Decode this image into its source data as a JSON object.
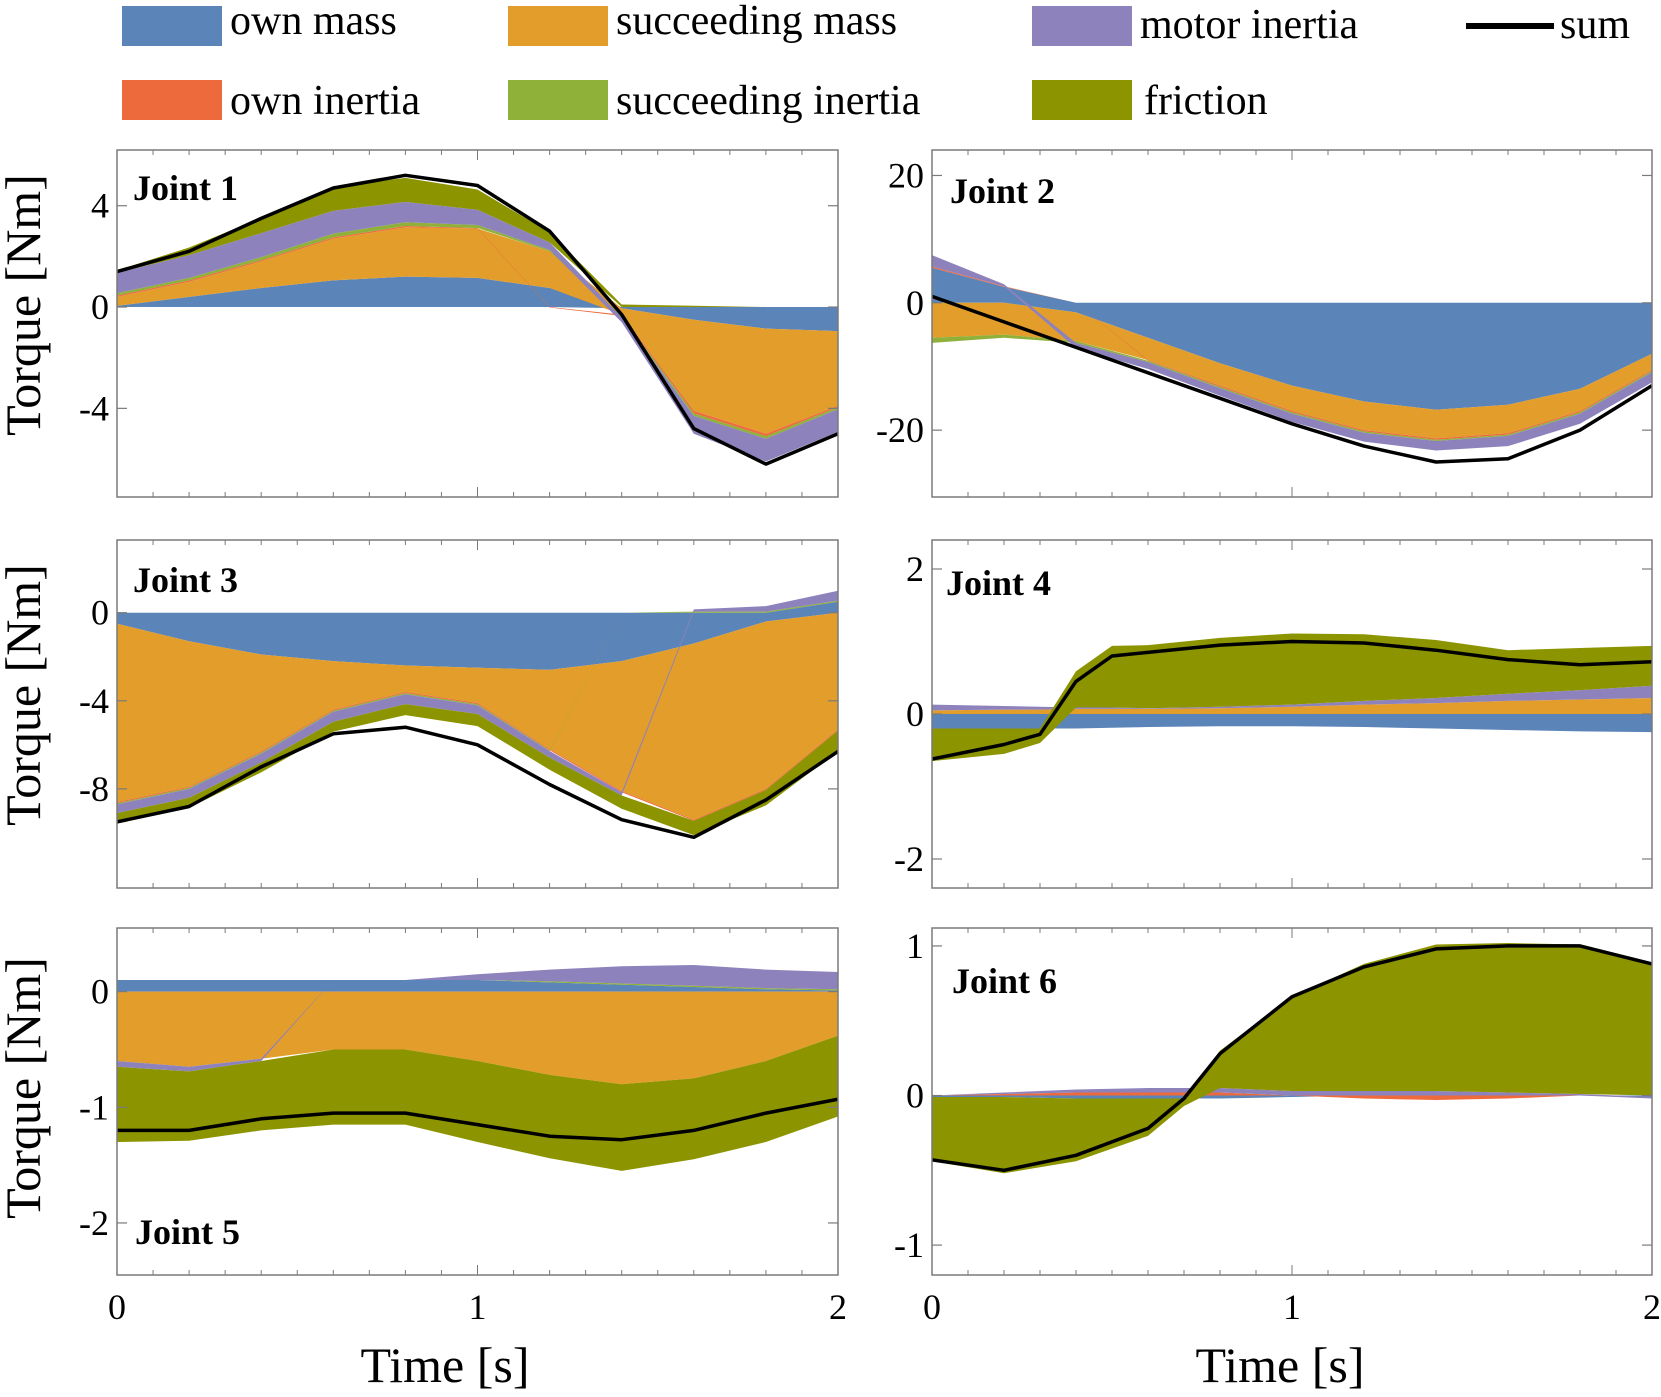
{
  "legend": {
    "entries": [
      {
        "key": "own_mass",
        "label": "own mass",
        "color": "#5b84b8"
      },
      {
        "key": "succ_mass",
        "label": "succeeding mass",
        "color": "#e39d2b"
      },
      {
        "key": "motor_inertia",
        "label": "motor inertia",
        "color": "#8e82bd"
      },
      {
        "key": "sum",
        "label": "sum",
        "color": "#000000"
      },
      {
        "key": "own_inertia",
        "label": "own inertia",
        "color": "#ed6a3d"
      },
      {
        "key": "succ_inertia",
        "label": "succeeding inertia",
        "color": "#8fb13a"
      },
      {
        "key": "friction",
        "label": "friction",
        "color": "#8c9400"
      }
    ]
  },
  "axes": {
    "ylabel": "Torque [Nm]",
    "xlabel": "Time [s]"
  },
  "chart_data": [
    {
      "type": "area",
      "title": "Joint 1",
      "xlabel": "Time [s]",
      "ylabel": "Torque [Nm]",
      "xlim": [
        0,
        2
      ],
      "ylim": [
        -7.5,
        6.2
      ],
      "xticks": [
        0,
        1,
        2
      ],
      "yticks": [
        -4,
        0,
        4
      ],
      "ytick_labels": [
        "-4",
        "0",
        "4"
      ],
      "x": [
        0,
        0.2,
        0.4,
        0.6,
        0.8,
        1.0,
        1.2,
        1.4,
        1.6,
        1.8,
        2.0
      ],
      "series": [
        {
          "key": "own_mass",
          "name": "own mass",
          "values": [
            0.05,
            0.4,
            0.75,
            1.05,
            1.2,
            1.15,
            0.75,
            -0.05,
            -0.5,
            -0.85,
            -0.95
          ]
        },
        {
          "key": "succ_mass",
          "name": "succeeding mass",
          "values": [
            0.35,
            0.6,
            1.05,
            1.65,
            1.95,
            1.95,
            1.45,
            -0.25,
            -3.6,
            -4.15,
            -2.95
          ]
        },
        {
          "key": "own_inertia",
          "name": "own inertia",
          "values": [
            0.05,
            0.05,
            0.05,
            0.05,
            0.05,
            0.02,
            -0.02,
            -0.05,
            -0.1,
            -0.1,
            -0.05
          ]
        },
        {
          "key": "succ_inertia",
          "name": "succeeding inertia",
          "values": [
            0.1,
            0.1,
            0.12,
            0.15,
            0.15,
            0.12,
            0.05,
            -0.05,
            -0.1,
            -0.1,
            -0.08
          ]
        },
        {
          "key": "motor_inertia",
          "name": "motor inertia",
          "values": [
            0.8,
            0.9,
            0.95,
            0.9,
            0.8,
            0.6,
            0.3,
            -0.2,
            -0.7,
            -0.9,
            -0.9
          ]
        },
        {
          "key": "friction",
          "name": "friction",
          "values": [
            0.1,
            0.3,
            0.6,
            0.95,
            0.95,
            0.8,
            0.4,
            0.1,
            0.05,
            0.0,
            0.0
          ]
        }
      ],
      "sum": [
        1.4,
        2.2,
        3.5,
        4.7,
        5.2,
        4.8,
        3.0,
        -0.3,
        -4.8,
        -6.2,
        -5.0
      ]
    },
    {
      "type": "area",
      "title": "Joint 2",
      "xlabel": "Time [s]",
      "ylabel": "Torque [Nm]",
      "xlim": [
        0,
        2
      ],
      "ylim": [
        -30.5,
        24
      ],
      "xticks": [
        0,
        1,
        2
      ],
      "yticks": [
        -20,
        0,
        20
      ],
      "ytick_labels": [
        "-20",
        "0",
        "20"
      ],
      "x": [
        0,
        0.2,
        0.4,
        0.6,
        0.8,
        1.0,
        1.2,
        1.4,
        1.6,
        1.8,
        2.0
      ],
      "series": [
        {
          "key": "own_mass",
          "name": "own mass",
          "values": [
            5.5,
            2.5,
            -1.5,
            -5.5,
            -9.5,
            -13.0,
            -15.5,
            -16.8,
            -16.0,
            -13.5,
            -8.0
          ]
        },
        {
          "key": "succ_mass",
          "name": "succeeding mass",
          "values": [
            -5.5,
            -5.0,
            -4.5,
            -3.5,
            -3.5,
            -4.0,
            -4.5,
            -4.5,
            -4.5,
            -3.5,
            -2.5
          ]
        },
        {
          "key": "own_inertia",
          "name": "own inertia",
          "values": [
            0.2,
            0.1,
            0.0,
            -0.1,
            -0.2,
            -0.2,
            -0.2,
            -0.2,
            -0.2,
            -0.2,
            -0.2
          ]
        },
        {
          "key": "succ_inertia",
          "name": "succeeding inertia",
          "values": [
            -0.8,
            -0.5,
            -0.3,
            -0.2,
            -0.2,
            -0.2,
            -0.2,
            -0.2,
            -0.2,
            -0.2,
            -0.2
          ]
        },
        {
          "key": "motor_inertia",
          "name": "motor inertia",
          "values": [
            1.8,
            0.3,
            -0.8,
            -1.1,
            -1.2,
            -1.3,
            -1.4,
            -1.5,
            -1.6,
            -1.6,
            -1.6
          ]
        },
        {
          "key": "friction",
          "name": "friction",
          "values": [
            0.0,
            0.0,
            0.0,
            0.0,
            0.0,
            0.0,
            0.0,
            0.0,
            0.0,
            0.0,
            0.0
          ]
        }
      ],
      "sum": [
        1.0,
        -3.0,
        -7.0,
        -11.0,
        -15.0,
        -19.0,
        -22.5,
        -25.0,
        -24.5,
        -20.0,
        -13.0
      ]
    },
    {
      "type": "area",
      "title": "Joint 3",
      "xlabel": "Time [s]",
      "ylabel": "Torque [Nm]",
      "xlim": [
        0,
        2
      ],
      "ylim": [
        -12.5,
        3.3
      ],
      "xticks": [
        0,
        1,
        2
      ],
      "yticks": [
        -8,
        -4,
        0
      ],
      "ytick_labels": [
        "-8",
        "-4",
        "0"
      ],
      "x": [
        0,
        0.2,
        0.4,
        0.6,
        0.8,
        1.0,
        1.2,
        1.4,
        1.6,
        1.8,
        2.0
      ],
      "series": [
        {
          "key": "own_mass",
          "name": "own mass",
          "values": [
            -0.5,
            -1.3,
            -1.9,
            -2.2,
            -2.4,
            -2.5,
            -2.6,
            -2.2,
            -1.4,
            -0.4,
            0.5
          ]
        },
        {
          "key": "succ_mass",
          "name": "succeeding mass",
          "values": [
            -8.1,
            -6.6,
            -4.4,
            -2.2,
            -1.2,
            -1.6,
            -3.6,
            -5.9,
            -8.0,
            -7.6,
            -5.3
          ]
        },
        {
          "key": "own_inertia",
          "name": "own inertia",
          "values": [
            -0.05,
            -0.05,
            -0.05,
            -0.05,
            -0.05,
            -0.05,
            -0.05,
            -0.05,
            -0.05,
            -0.05,
            -0.05
          ]
        },
        {
          "key": "succ_inertia",
          "name": "succeeding inertia",
          "values": [
            -0.05,
            -0.05,
            -0.05,
            -0.05,
            -0.05,
            -0.05,
            -0.03,
            0.0,
            0.05,
            0.05,
            0.05
          ]
        },
        {
          "key": "motor_inertia",
          "name": "motor inertia",
          "values": [
            -0.4,
            -0.4,
            -0.4,
            -0.45,
            -0.45,
            -0.4,
            -0.3,
            -0.15,
            0.1,
            0.25,
            0.45
          ]
        },
        {
          "key": "friction",
          "name": "friction",
          "values": [
            -0.4,
            -0.45,
            -0.45,
            -0.45,
            -0.5,
            -0.55,
            -0.55,
            -0.6,
            -0.65,
            -0.7,
            -0.95
          ]
        }
      ],
      "sum": [
        -9.5,
        -8.8,
        -7.0,
        -5.5,
        -5.2,
        -6.0,
        -7.8,
        -9.4,
        -10.2,
        -8.5,
        -6.3
      ]
    },
    {
      "type": "area",
      "title": "Joint 4",
      "xlabel": "Time [s]",
      "ylabel": "Torque [Nm]",
      "xlim": [
        0,
        2
      ],
      "ylim": [
        -2.4,
        2.4
      ],
      "xticks": [
        0,
        1,
        2
      ],
      "yticks": [
        -2,
        0,
        2
      ],
      "ytick_labels": [
        "-2",
        "0",
        "2"
      ],
      "x": [
        0,
        0.2,
        0.3,
        0.4,
        0.5,
        0.6,
        0.8,
        1.0,
        1.2,
        1.4,
        1.6,
        1.8,
        2.0
      ],
      "series": [
        {
          "key": "own_mass",
          "name": "own mass",
          "values": [
            -0.2,
            -0.2,
            -0.2,
            -0.2,
            -0.19,
            -0.18,
            -0.17,
            -0.17,
            -0.18,
            -0.2,
            -0.22,
            -0.24,
            -0.25
          ]
        },
        {
          "key": "succ_mass",
          "name": "succeeding mass",
          "values": [
            0.05,
            0.06,
            0.06,
            0.07,
            0.07,
            0.07,
            0.08,
            0.1,
            0.13,
            0.15,
            0.18,
            0.2,
            0.22
          ]
        },
        {
          "key": "own_inertia",
          "name": "own inertia",
          "values": [
            0.0,
            0.0,
            0.0,
            0.0,
            0.0,
            0.0,
            0.0,
            0.0,
            0.0,
            0.0,
            0.0,
            0.0,
            0.0
          ]
        },
        {
          "key": "succ_inertia",
          "name": "succeeding inertia",
          "values": [
            0.0,
            0.0,
            0.0,
            0.0,
            0.0,
            0.0,
            0.0,
            0.0,
            0.0,
            0.0,
            0.0,
            0.0,
            0.0
          ]
        },
        {
          "key": "motor_inertia",
          "name": "motor inertia",
          "values": [
            0.08,
            0.05,
            0.04,
            0.02,
            0.02,
            0.01,
            0.02,
            0.03,
            0.05,
            0.07,
            0.1,
            0.13,
            0.17
          ]
        },
        {
          "key": "friction",
          "name": "friction",
          "values": [
            -0.45,
            -0.35,
            -0.2,
            0.5,
            0.85,
            0.87,
            0.95,
            0.98,
            0.92,
            0.8,
            0.6,
            0.58,
            0.55
          ]
        }
      ],
      "sum": [
        -0.62,
        -0.42,
        -0.28,
        0.45,
        0.8,
        0.85,
        0.95,
        1.0,
        0.98,
        0.88,
        0.75,
        0.68,
        0.72
      ]
    },
    {
      "type": "area",
      "title": "Joint 5",
      "xlabel": "Time [s]",
      "ylabel": "Torque [Nm]",
      "xlim": [
        0,
        2
      ],
      "ylim": [
        -2.45,
        0.55
      ],
      "xticks": [
        0,
        1,
        2
      ],
      "yticks": [
        -2,
        -1,
        0
      ],
      "ytick_labels": [
        "-2",
        "-1",
        "0"
      ],
      "x": [
        0,
        0.2,
        0.4,
        0.6,
        0.8,
        1.0,
        1.2,
        1.4,
        1.6,
        1.8,
        2.0
      ],
      "series": [
        {
          "key": "own_mass",
          "name": "own mass",
          "values": [
            0.1,
            0.1,
            0.1,
            0.1,
            0.1,
            0.1,
            0.08,
            0.06,
            0.04,
            0.02,
            0.01
          ]
        },
        {
          "key": "succ_mass",
          "name": "succeeding mass",
          "values": [
            -0.6,
            -0.65,
            -0.58,
            -0.5,
            -0.5,
            -0.6,
            -0.72,
            -0.8,
            -0.75,
            -0.6,
            -0.38
          ]
        },
        {
          "key": "own_inertia",
          "name": "own inertia",
          "values": [
            0.0,
            0.0,
            0.0,
            0.0,
            0.0,
            0.0,
            0.0,
            0.0,
            0.0,
            0.0,
            0.0
          ]
        },
        {
          "key": "succ_inertia",
          "name": "succeeding inertia",
          "values": [
            0.0,
            0.0,
            0.0,
            0.0,
            0.0,
            0.0,
            0.01,
            0.01,
            0.01,
            0.01,
            0.01
          ]
        },
        {
          "key": "motor_inertia",
          "name": "motor inertia",
          "values": [
            -0.05,
            -0.04,
            -0.02,
            0.0,
            0.0,
            0.05,
            0.1,
            0.15,
            0.18,
            0.16,
            0.15
          ]
        },
        {
          "key": "friction",
          "name": "friction",
          "values": [
            -0.65,
            -0.6,
            -0.6,
            -0.65,
            -0.65,
            -0.7,
            -0.72,
            -0.75,
            -0.7,
            -0.7,
            -0.7
          ]
        }
      ],
      "sum": [
        -1.2,
        -1.2,
        -1.1,
        -1.05,
        -1.05,
        -1.15,
        -1.25,
        -1.28,
        -1.2,
        -1.05,
        -0.93
      ]
    },
    {
      "type": "area",
      "title": "Joint 6",
      "xlabel": "Time [s]",
      "ylabel": "Torque [Nm]",
      "xlim": [
        0,
        2
      ],
      "ylim": [
        -1.2,
        1.12
      ],
      "xticks": [
        0,
        1,
        2
      ],
      "yticks": [
        -1,
        0,
        1
      ],
      "ytick_labels": [
        "-1",
        "0",
        "1"
      ],
      "x": [
        0,
        0.2,
        0.4,
        0.6,
        0.7,
        0.8,
        1.0,
        1.2,
        1.4,
        1.6,
        1.8,
        2.0
      ],
      "series": [
        {
          "key": "own_mass",
          "name": "own mass",
          "values": [
            -0.01,
            -0.01,
            -0.02,
            -0.02,
            -0.02,
            -0.02,
            -0.01,
            0.0,
            0.0,
            0.0,
            0.0,
            -0.01
          ]
        },
        {
          "key": "succ_mass",
          "name": "succeeding mass",
          "values": [
            0.0,
            0.0,
            0.0,
            0.0,
            0.0,
            0.0,
            0.0,
            0.0,
            0.0,
            0.0,
            0.0,
            0.0
          ]
        },
        {
          "key": "own_inertia",
          "name": "own inertia",
          "values": [
            0.0,
            0.01,
            0.02,
            0.02,
            0.02,
            0.02,
            0.0,
            -0.02,
            -0.03,
            -0.02,
            0.0,
            0.0
          ]
        },
        {
          "key": "succ_inertia",
          "name": "succeeding inertia",
          "values": [
            0.0,
            0.0,
            0.0,
            0.0,
            0.0,
            0.0,
            0.0,
            0.0,
            0.0,
            0.0,
            0.0,
            0.0
          ]
        },
        {
          "key": "motor_inertia",
          "name": "motor inertia",
          "values": [
            0.0,
            0.01,
            0.02,
            0.03,
            0.03,
            0.03,
            0.03,
            0.03,
            0.03,
            0.02,
            0.01,
            -0.01
          ]
        },
        {
          "key": "friction",
          "name": "friction",
          "values": [
            -0.43,
            -0.51,
            -0.42,
            -0.25,
            -0.05,
            0.25,
            0.63,
            0.85,
            0.98,
            1.0,
            1.0,
            0.89
          ]
        }
      ],
      "sum": [
        -0.43,
        -0.5,
        -0.4,
        -0.22,
        -0.02,
        0.28,
        0.66,
        0.86,
        0.98,
        1.0,
        1.0,
        0.88
      ]
    }
  ]
}
